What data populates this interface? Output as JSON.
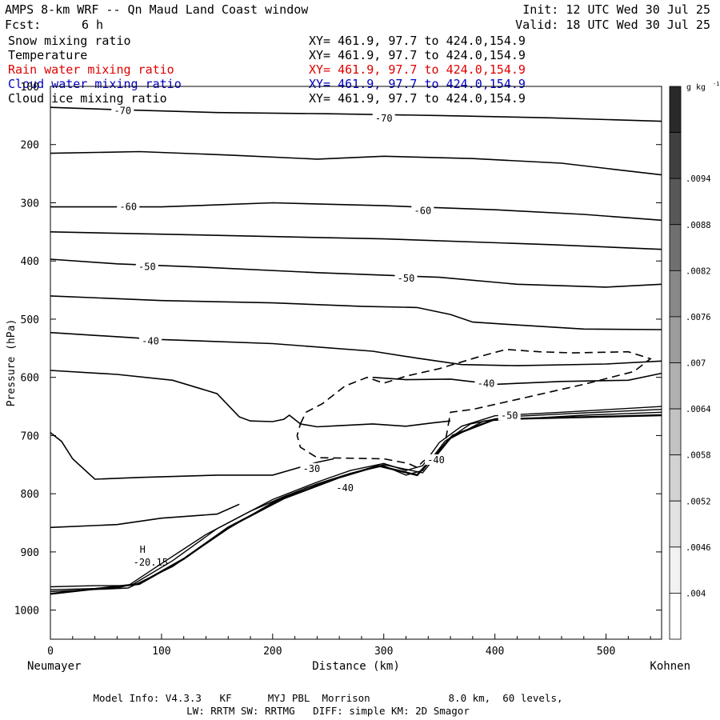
{
  "header": {
    "title": "AMPS 8-km WRF -- Qn Maud Land Coast window",
    "fcst_label": "Fcst:",
    "fcst_value": "6 h",
    "init": "Init: 12 UTC Wed 30 Jul 25",
    "valid": "Valid: 18 UTC Wed 30 Jul 25"
  },
  "fields": [
    {
      "name": "Snow mixing ratio",
      "xy": "XY= 461.9, 97.7 to 424.0,154.9",
      "color": "#000000"
    },
    {
      "name": "Temperature",
      "xy": "XY= 461.9, 97.7 to 424.0,154.9",
      "color": "#000000"
    },
    {
      "name": "Rain water mixing ratio",
      "xy": "XY= 461.9, 97.7 to 424.0,154.9",
      "color": "#e00000"
    },
    {
      "name": "Cloud water mixing ratio",
      "xy": "XY= 461.9, 97.7 to 424.0,154.9",
      "color": "#0000c0"
    },
    {
      "name": "Cloud ice mixing ratio",
      "xy": "XY= 461.9, 97.7 to 424.0,154.9",
      "color": "#000000"
    }
  ],
  "chart_data": {
    "type": "line",
    "xlabel": "Distance (km)",
    "ylabel": "Pressure (hPa)",
    "xlim": [
      0,
      550
    ],
    "ylim": [
      1050,
      100
    ],
    "xticks": [
      0,
      100,
      200,
      300,
      400,
      500
    ],
    "yticks": [
      100,
      200,
      300,
      400,
      500,
      600,
      700,
      800,
      900,
      1000
    ],
    "x_endpoint_labels": {
      "left": "Neumayer",
      "right": "Kohnen"
    },
    "temperature_contours": [
      {
        "points": [
          [
            0,
            136
          ],
          [
            60,
            140
          ],
          [
            150,
            145
          ],
          [
            250,
            147
          ],
          [
            350,
            150
          ],
          [
            450,
            154
          ],
          [
            550,
            160
          ]
        ]
      },
      {
        "points": [
          [
            0,
            215
          ],
          [
            80,
            212
          ],
          [
            160,
            218
          ],
          [
            240,
            225
          ],
          [
            300,
            220
          ],
          [
            380,
            224
          ],
          [
            460,
            232
          ],
          [
            550,
            252
          ]
        ]
      },
      {
        "points": [
          [
            0,
            307
          ],
          [
            100,
            307
          ],
          [
            200,
            300
          ],
          [
            300,
            305
          ],
          [
            400,
            312
          ],
          [
            480,
            320
          ],
          [
            550,
            330
          ]
        ]
      },
      {
        "points": [
          [
            0,
            350
          ],
          [
            150,
            356
          ],
          [
            300,
            362
          ],
          [
            450,
            372
          ],
          [
            550,
            380
          ]
        ]
      },
      {
        "points": [
          [
            0,
            397
          ],
          [
            60,
            405
          ],
          [
            140,
            411
          ],
          [
            240,
            420
          ],
          [
            350,
            428
          ],
          [
            420,
            440
          ],
          [
            500,
            445
          ],
          [
            550,
            440
          ]
        ]
      },
      {
        "points": [
          [
            0,
            460
          ],
          [
            100,
            468
          ],
          [
            200,
            472
          ],
          [
            280,
            478
          ],
          [
            330,
            480
          ],
          [
            360,
            492
          ],
          [
            380,
            505
          ],
          [
            420,
            510
          ],
          [
            480,
            517
          ],
          [
            550,
            518
          ]
        ]
      },
      {
        "points": [
          [
            0,
            523
          ],
          [
            100,
            535
          ],
          [
            200,
            542
          ],
          [
            290,
            555
          ],
          [
            330,
            567
          ],
          [
            370,
            578
          ],
          [
            420,
            580
          ],
          [
            500,
            577
          ],
          [
            550,
            572
          ]
        ]
      },
      {
        "points": [
          [
            0,
            588
          ],
          [
            60,
            595
          ],
          [
            110,
            605
          ],
          [
            150,
            628
          ],
          [
            170,
            668
          ],
          [
            180,
            675
          ],
          [
            200,
            676
          ],
          [
            210,
            672
          ],
          [
            215,
            665
          ],
          [
            225,
            680
          ],
          [
            240,
            685
          ],
          [
            260,
            683
          ],
          [
            290,
            680
          ],
          [
            320,
            684
          ],
          [
            345,
            678
          ],
          [
            360,
            675
          ]
        ]
      },
      {
        "points": [
          [
            290,
            600
          ],
          [
            320,
            604
          ],
          [
            360,
            603
          ],
          [
            400,
            612
          ],
          [
            460,
            607
          ],
          [
            520,
            605
          ],
          [
            550,
            593
          ]
        ]
      },
      {
        "points": [
          [
            0,
            695
          ],
          [
            10,
            710
          ],
          [
            20,
            740
          ],
          [
            40,
            775
          ],
          [
            80,
            772
          ],
          [
            150,
            768
          ],
          [
            200,
            768
          ],
          [
            240,
            746
          ],
          [
            255,
            740
          ]
        ]
      },
      {
        "points": [
          [
            0,
            858
          ],
          [
            60,
            853
          ],
          [
            100,
            842
          ],
          [
            150,
            835
          ],
          [
            170,
            818
          ]
        ]
      }
    ],
    "temperature_labels": [
      {
        "text": "-70",
        "x": 65,
        "y": 142
      },
      {
        "text": "-70",
        "x": 300,
        "y": 155
      },
      {
        "text": "-60",
        "x": 70,
        "y": 307
      },
      {
        "text": "-60",
        "x": 335,
        "y": 314
      },
      {
        "text": "-50",
        "x": 87,
        "y": 410
      },
      {
        "text": "-50",
        "x": 320,
        "y": 430
      },
      {
        "text": "-40",
        "x": 90,
        "y": 538
      },
      {
        "text": "-40",
        "x": 392,
        "y": 611
      },
      {
        "text": "-30",
        "x": 235,
        "y": 757
      },
      {
        "text": "-40",
        "x": 265,
        "y": 790
      },
      {
        "text": "-40",
        "x": 347,
        "y": 742
      },
      {
        "text": "-50",
        "x": 413,
        "y": 666
      }
    ],
    "terrain_lines": [
      {
        "points": [
          [
            0,
            960
          ],
          [
            40,
            958
          ],
          [
            70,
            958
          ],
          [
            100,
            920
          ],
          [
            140,
            870
          ],
          [
            170,
            840
          ],
          [
            200,
            810
          ],
          [
            240,
            780
          ],
          [
            270,
            760
          ],
          [
            300,
            748
          ],
          [
            320,
            760
          ],
          [
            335,
            752
          ],
          [
            350,
            712
          ],
          [
            370,
            684
          ],
          [
            400,
            666
          ],
          [
            460,
            660
          ],
          [
            550,
            650
          ]
        ]
      },
      {
        "points": [
          [
            0,
            965
          ],
          [
            60,
            962
          ],
          [
            75,
            955
          ],
          [
            110,
            915
          ],
          [
            150,
            860
          ],
          [
            180,
            830
          ],
          [
            210,
            805
          ],
          [
            240,
            783
          ],
          [
            270,
            765
          ],
          [
            300,
            752
          ],
          [
            320,
            768
          ],
          [
            335,
            760
          ],
          [
            355,
            710
          ],
          [
            378,
            680
          ],
          [
            410,
            668
          ],
          [
            470,
            662
          ],
          [
            550,
            655
          ]
        ]
      },
      {
        "points": [
          [
            0,
            968
          ],
          [
            70,
            962
          ],
          [
            110,
            925
          ],
          [
            160,
            860
          ],
          [
            200,
            815
          ],
          [
            230,
            790
          ],
          [
            270,
            765
          ],
          [
            300,
            750
          ],
          [
            335,
            764
          ],
          [
            360,
            705
          ],
          [
            390,
            675
          ],
          [
            480,
            665
          ],
          [
            550,
            660
          ]
        ]
      },
      {
        "points": [
          [
            0,
            972
          ],
          [
            80,
            955
          ],
          [
            120,
            912
          ],
          [
            160,
            858
          ],
          [
            210,
            808
          ],
          [
            260,
            772
          ],
          [
            295,
            752
          ],
          [
            330,
            768
          ],
          [
            362,
            700
          ],
          [
            400,
            672
          ],
          [
            490,
            668
          ],
          [
            550,
            665
          ]
        ]
      }
    ],
    "ice_dashed_contour": {
      "points": [
        [
          225,
          680
        ],
        [
          230,
          660
        ],
        [
          245,
          645
        ],
        [
          265,
          615
        ],
        [
          285,
          600
        ],
        [
          300,
          610
        ],
        [
          320,
          598
        ],
        [
          350,
          585
        ],
        [
          385,
          565
        ],
        [
          410,
          552
        ],
        [
          440,
          556
        ],
        [
          470,
          558
        ],
        [
          520,
          556
        ],
        [
          540,
          568
        ],
        [
          525,
          590
        ],
        [
          480,
          612
        ],
        [
          420,
          638
        ],
        [
          380,
          655
        ],
        [
          360,
          660
        ],
        [
          355,
          715
        ],
        [
          345,
          735
        ],
        [
          340,
          738
        ],
        [
          335,
          745
        ],
        [
          330,
          755
        ],
        [
          322,
          748
        ],
        [
          300,
          740
        ],
        [
          240,
          738
        ],
        [
          225,
          720
        ],
        [
          222,
          700
        ],
        [
          225,
          680
        ]
      ]
    },
    "extremum": {
      "label": "H",
      "value": "-20.15",
      "x": 83,
      "y": 918
    },
    "colorbar": {
      "unit": "g kg",
      "unit_sup": "-1",
      "levels": [
        ".004",
        ".0046",
        ".0052",
        ".0058",
        ".0064",
        ".007",
        ".0076",
        ".0082",
        ".0088",
        ".0094"
      ],
      "colors": [
        "#ffffff",
        "#f2f2f2",
        "#e2e2e2",
        "#d2d2d2",
        "#c2c2c2",
        "#b0b0b0",
        "#9c9c9c",
        "#888888",
        "#707070",
        "#585858",
        "#404040",
        "#2a2a2a"
      ]
    }
  },
  "footer": {
    "line1": "Model Info: V4.3.3   KF      MYJ PBL  Morrison             8.0 km,  60 levels,",
    "line2": "LW: RRTM SW: RRTMG   DIFF: simple KM: 2D Smagor"
  }
}
